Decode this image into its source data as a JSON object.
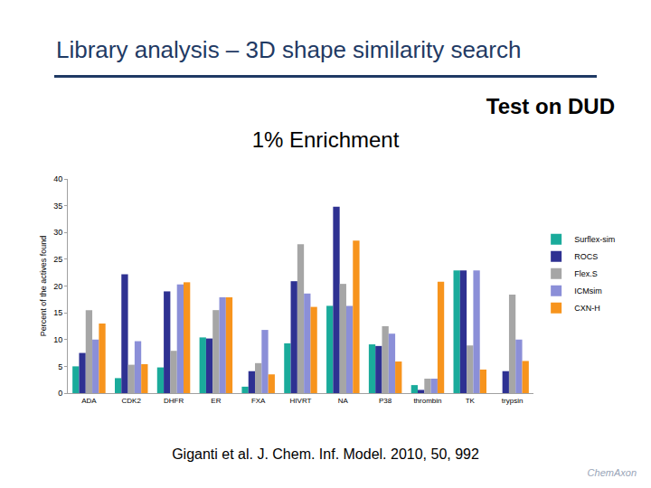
{
  "header": {
    "title": "Library analysis – 3D shape similarity search",
    "subtitle": "Test on DUD"
  },
  "chart_data": {
    "type": "bar",
    "title": "1% Enrichment",
    "ylabel": "Percent of the actives found",
    "categories": [
      "ADA",
      "CDK2",
      "DHFR",
      "ER",
      "FXA",
      "HIVRT",
      "NA",
      "P38",
      "thrombin",
      "TK",
      "trypsin"
    ],
    "series": [
      {
        "name": "Surflex-sim",
        "color": "#1aab9b",
        "values": [
          5.0,
          2.8,
          4.8,
          10.4,
          1.2,
          9.3,
          16.3,
          9.1,
          1.5,
          22.9,
          0
        ]
      },
      {
        "name": "ROCS",
        "color": "#2e3192",
        "values": [
          7.5,
          22.2,
          19.0,
          10.2,
          4.1,
          20.9,
          34.8,
          8.8,
          0.6,
          22.9,
          4.1
        ]
      },
      {
        "name": "Flex.S",
        "color": "#a6a6a6",
        "values": [
          15.5,
          5.3,
          7.9,
          15.5,
          5.6,
          27.8,
          20.4,
          12.5,
          2.7,
          8.9,
          18.4
        ]
      },
      {
        "name": "ICMsim",
        "color": "#8b8fd8",
        "values": [
          10.0,
          9.7,
          20.3,
          17.9,
          11.8,
          18.6,
          16.3,
          11.1,
          2.7,
          22.9,
          10.0
        ]
      },
      {
        "name": "CXN-H",
        "color": "#f7941d",
        "values": [
          13.0,
          5.4,
          20.7,
          17.9,
          3.5,
          16.1,
          28.5,
          5.9,
          20.8,
          4.4,
          6.0
        ]
      }
    ],
    "ylim": [
      0,
      40
    ],
    "yticks": [
      0,
      5,
      10,
      15,
      20,
      25,
      30,
      35,
      40
    ],
    "grid": false,
    "legend": "right"
  },
  "footer": {
    "citation": "Giganti et al. J. Chem. Inf. Model. 2010, 50, 992",
    "logo": "ChemAxon"
  }
}
